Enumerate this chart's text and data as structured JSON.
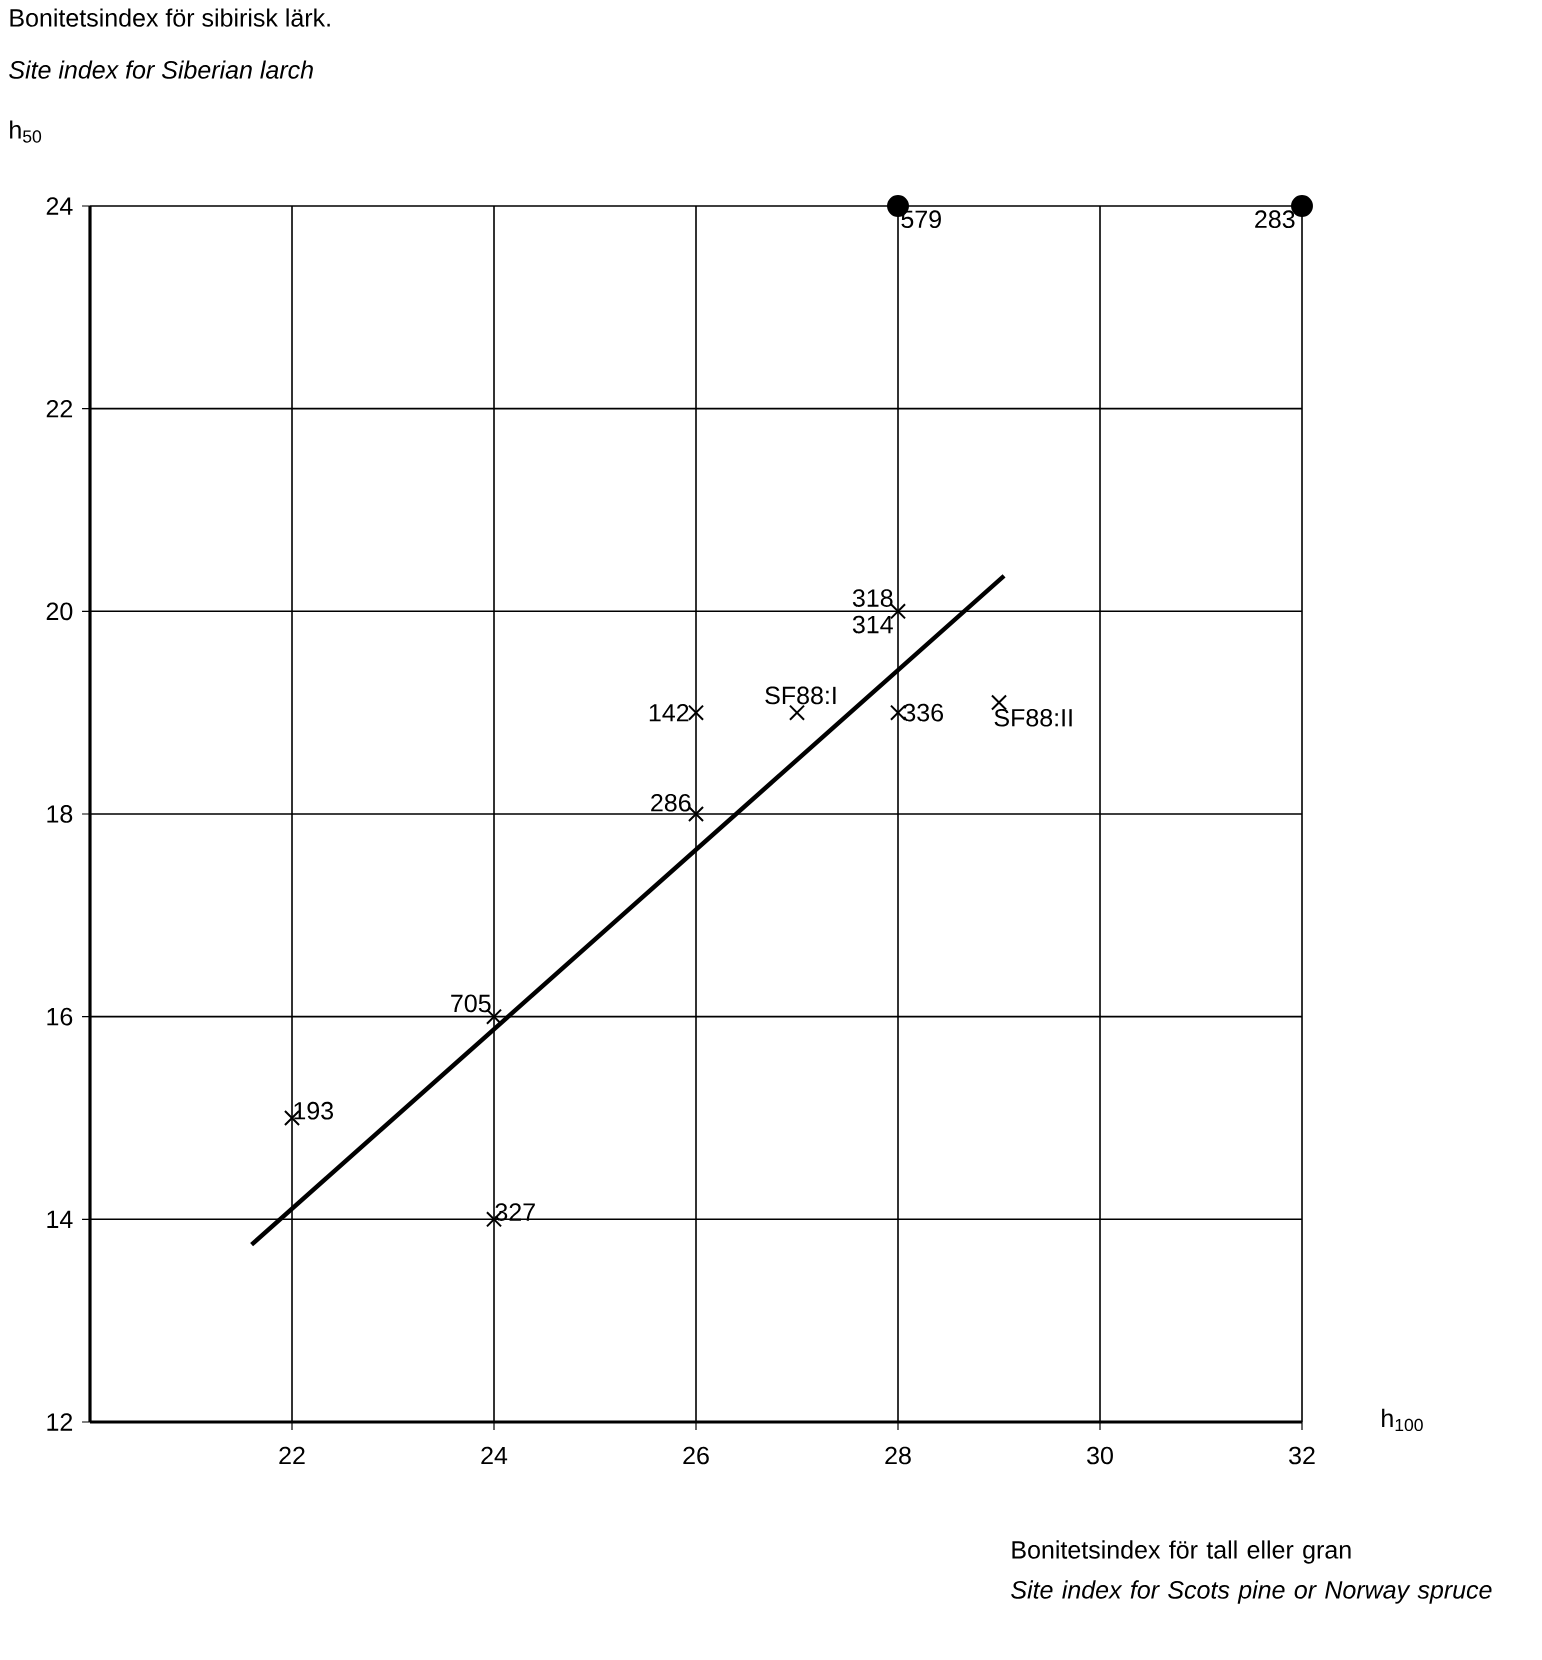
{
  "chart_data": {
    "type": "scatter",
    "title": "Bonitetsindex för sibirisk lärk.",
    "subtitle": "Site index for Siberian larch",
    "xlabel": "h$_{100}$",
    "ylabel": "h$_{50}$",
    "xlim": [
      20,
      32
    ],
    "ylim": [
      12,
      24
    ],
    "xticks": [
      22,
      24,
      26,
      28,
      30,
      32
    ],
    "yticks": [
      12,
      14,
      16,
      18,
      20,
      22,
      24
    ],
    "grid": true,
    "series": [
      {
        "type": "scatter",
        "marker": "cross",
        "color": "#000000",
        "x": [
          22,
          24,
          24,
          26,
          26,
          27,
          28,
          28,
          29
        ],
        "values": [
          15,
          14,
          16,
          18,
          19,
          19,
          20,
          19,
          19.1
        ]
      },
      {
        "type": "scatter",
        "marker": "circle",
        "color": "#000000",
        "x": [
          28,
          32
        ],
        "values": [
          24,
          24
        ]
      },
      {
        "type": "line",
        "marker": "none",
        "color": "#000000",
        "x": [
          21.6,
          29.05
        ],
        "values": [
          13.75,
          20.35
        ]
      }
    ],
    "annotations": [
      {
        "text": "193",
        "x": 22,
        "y": 15
      },
      {
        "text": "327",
        "x": 24,
        "y": 14
      },
      {
        "text": "705",
        "x": 24,
        "y": 16
      },
      {
        "text": "286",
        "x": 26,
        "y": 18
      },
      {
        "text": "142",
        "x": 26,
        "y": 19
      },
      {
        "text": "SF88:I",
        "x": 27,
        "y": 19
      },
      {
        "text": "318",
        "x": 28,
        "y": 20
      },
      {
        "text": "314",
        "x": 28,
        "y": 20
      },
      {
        "text": "336",
        "x": 28,
        "y": 19
      },
      {
        "text": "SF88:II",
        "x": 29,
        "y": 19.1
      },
      {
        "text": "579",
        "x": 28,
        "y": 24
      },
      {
        "text": "283",
        "x": 32,
        "y": 24
      },
      "Bonitetsindex för tall eller gran",
      "Site index for Scots pine or Norway spruce"
    ]
  }
}
